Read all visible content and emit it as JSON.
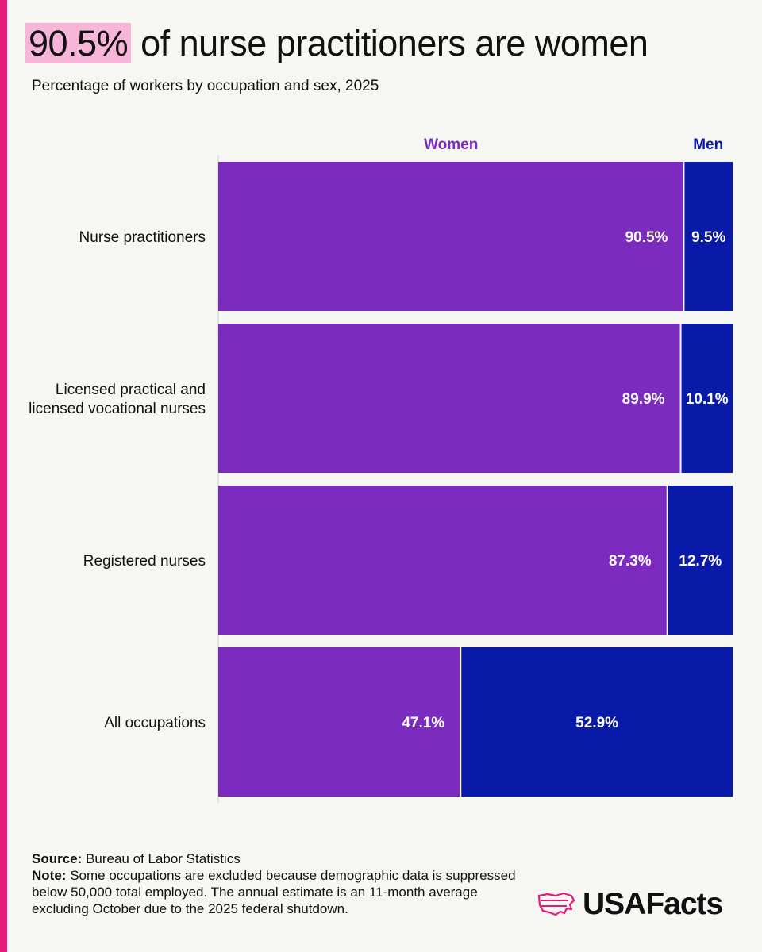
{
  "headline": {
    "highlight": "90.5%",
    "rest": "of nurse practitioners are women"
  },
  "subtitle": "Percentage of workers by occupation and sex, 2025",
  "colors": {
    "accent": "#e8197d",
    "highlight": "#f7b6d8",
    "women": "#7b2cbf",
    "men": "#0a1aa8"
  },
  "chart_data": {
    "type": "bar",
    "orientation": "horizontal",
    "stacked": true,
    "categories": [
      [
        "Nurse practitioners"
      ],
      [
        "Licensed practical and",
        "licensed vocational nurses"
      ],
      [
        "Registered nurses"
      ],
      [
        "All occupations"
      ]
    ],
    "series": [
      {
        "name": "Women",
        "values": [
          90.5,
          89.9,
          87.3,
          47.1
        ],
        "labels": [
          "90.5%",
          "89.9%",
          "87.3%",
          "47.1%"
        ]
      },
      {
        "name": "Men",
        "values": [
          9.5,
          10.1,
          12.7,
          52.9
        ],
        "labels": [
          "9.5%",
          "10.1%",
          "12.7%",
          "52.9%"
        ]
      }
    ],
    "xlim": [
      0,
      100
    ],
    "legend_position": "top"
  },
  "footer": {
    "source_label": "Source:",
    "source_text": "Bureau of Labor Statistics",
    "note_label": "Note:",
    "note_text": "Some occupations are excluded because demographic data is suppressed below 50,000 total employed. The annual estimate is an 11-month average excluding October due to the 2025 federal shutdown."
  },
  "logo": {
    "text": "USAFacts",
    "icon": "us-map-icon"
  }
}
